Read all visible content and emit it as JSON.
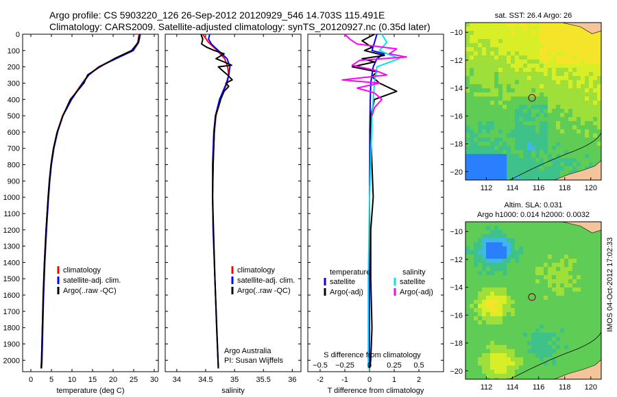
{
  "header": {
    "line1": "Argo profile: CS 5903220_126 26-Sep-2012 20120929_546 14.703S 115.491E",
    "line2": "Climatology: CARS2009. Satellite-adjusted climatology: synTS_20120927.nc (0.35d later)"
  },
  "side_label": "IMOS 04-Oct-2012 17:02:33",
  "colors": {
    "climatology": "#ff0000",
    "satellite": "#0000ff",
    "argo": "#000000",
    "sal_satellite": "#00e5e5",
    "sal_argo": "#ff00ff",
    "land": "#f4c49a",
    "marker": "#6b1a1a"
  },
  "chart_data": [
    {
      "id": "temperature",
      "type": "line",
      "xlabel": "temperature (deg C)",
      "ylabel": "depth",
      "xlim": [
        -2,
        31
      ],
      "ylim": [
        2070,
        0
      ],
      "xticks": [
        0,
        5,
        10,
        15,
        20,
        25,
        30
      ],
      "yticks": [
        0,
        100,
        200,
        300,
        400,
        500,
        600,
        700,
        800,
        900,
        1000,
        1100,
        1200,
        1300,
        1400,
        1500,
        1600,
        1700,
        1800,
        1900,
        2000
      ],
      "legend": {
        "position": "middle-left",
        "entries": [
          "climatology",
          "satellite-adj. clim.",
          "Argo(..raw -QC)"
        ]
      },
      "series": [
        {
          "name": "climatology",
          "color": "#ff0000",
          "depth": [
            0,
            50,
            100,
            150,
            200,
            250,
            300,
            400,
            500,
            600,
            700,
            800,
            900,
            1000,
            1200,
            1400,
            1600,
            1800,
            2000,
            2050
          ],
          "values": [
            26.3,
            26,
            24.8,
            20.5,
            16.5,
            14,
            12.5,
            9.8,
            7.7,
            6.4,
            5.5,
            4.9,
            4.5,
            4.2,
            3.7,
            3.3,
            3,
            2.8,
            2.6,
            2.5
          ]
        },
        {
          "name": "satellite-adj. clim.",
          "color": "#0000ff",
          "depth": [
            0,
            50,
            100,
            150,
            200,
            250,
            300,
            400,
            500,
            600,
            700,
            800,
            900,
            1000,
            1200,
            1400,
            1600,
            1800,
            2000,
            2050
          ],
          "values": [
            26.6,
            26.2,
            24.9,
            20.7,
            16.6,
            14.1,
            12.6,
            9.9,
            7.8,
            6.5,
            5.6,
            5,
            4.6,
            4.3,
            3.8,
            3.4,
            3.1,
            2.9,
            2.7,
            2.6
          ]
        },
        {
          "name": "Argo(..raw -QC)",
          "color": "#000000",
          "depth": [
            0,
            50,
            100,
            150,
            200,
            250,
            300,
            400,
            500,
            600,
            700,
            800,
            900,
            1000,
            1200,
            1400,
            1600,
            1800,
            2000,
            2050
          ],
          "values": [
            26.5,
            26.1,
            24.5,
            20.3,
            16.8,
            13.8,
            12.9,
            9.6,
            7.8,
            6.4,
            5.5,
            4.9,
            4.5,
            4.2,
            3.7,
            3.3,
            3,
            2.8,
            2.6,
            2.5
          ]
        }
      ]
    },
    {
      "id": "salinity",
      "type": "line",
      "xlabel": "salinity",
      "ylabel": "depth",
      "xlim": [
        33.8,
        36.15
      ],
      "ylim": [
        2070,
        0
      ],
      "xticks": [
        34,
        34.5,
        35,
        35.5,
        36
      ],
      "legend": {
        "position": "middle-right",
        "entries": [
          "climatology",
          "satellite-adj. clim.",
          "Argo(..raw -QC)"
        ]
      },
      "annotation": [
        "Argo Australia",
        "PI: Susan Wijffels"
      ],
      "series": [
        {
          "name": "climatology",
          "color": "#ff0000",
          "depth": [
            0,
            50,
            100,
            150,
            200,
            250,
            300,
            400,
            500,
            600,
            800,
            1000,
            1200,
            1500,
            1800,
            2050
          ],
          "values": [
            34.45,
            34.55,
            34.7,
            34.83,
            34.88,
            34.9,
            34.87,
            34.75,
            34.68,
            34.65,
            34.63,
            34.62,
            34.63,
            34.66,
            34.69,
            34.72
          ]
        },
        {
          "name": "satellite-adj. clim.",
          "color": "#0000ff",
          "depth": [
            0,
            30,
            60,
            100,
            150,
            200,
            250,
            300,
            400,
            500,
            600,
            800,
            1000,
            1200,
            1500,
            1800,
            2050
          ],
          "values": [
            34.57,
            34.55,
            34.6,
            34.72,
            34.87,
            34.92,
            34.9,
            34.86,
            34.74,
            34.67,
            34.64,
            34.62,
            34.62,
            34.63,
            34.66,
            34.69,
            34.72
          ]
        },
        {
          "name": "Argo(..raw -QC)",
          "color": "#000000",
          "depth": [
            0,
            30,
            60,
            80,
            100,
            120,
            150,
            170,
            190,
            200,
            220,
            250,
            280,
            300,
            320,
            350,
            400,
            450,
            500,
            600,
            800,
            1000,
            1500,
            2050
          ],
          "values": [
            34.42,
            34.45,
            34.43,
            34.52,
            34.65,
            34.82,
            34.68,
            34.82,
            34.95,
            34.72,
            34.78,
            34.88,
            34.96,
            34.85,
            34.9,
            34.82,
            34.76,
            34.72,
            34.67,
            34.65,
            34.63,
            34.62,
            34.66,
            34.72
          ]
        }
      ]
    },
    {
      "id": "difference",
      "type": "line",
      "xlabel": "T difference from climatology",
      "ylabel": "depth",
      "xlim": [
        -2.5,
        3
      ],
      "ylim": [
        2070,
        0
      ],
      "xticks": [
        -2,
        -1,
        0,
        1,
        2
      ],
      "secondary_axis": {
        "label": "S difference from climatology",
        "ticks": [
          -0.5,
          -0.25,
          0,
          0.25,
          0.5
        ],
        "tick_labels": [
          "−0.5",
          "−0.25",
          "0",
          "0.25",
          "0.5"
        ],
        "scale": 4
      },
      "legend": {
        "position": "middle",
        "temperature_title": "temperature",
        "salinity_title": "salinity",
        "entries": [
          "satellite",
          "Argo(-adj)",
          "satellite",
          "Argo(-adj)"
        ]
      },
      "series": [
        {
          "name": "temperature satellite",
          "color": "#0000ff",
          "depth": [
            0,
            50,
            100,
            120,
            150,
            200,
            250,
            300,
            400,
            500,
            600,
            800,
            1000,
            1500,
            2050
          ],
          "values": [
            0.3,
            0.2,
            0.1,
            0.6,
            0.3,
            0.15,
            0.1,
            0.05,
            0.03,
            0.02,
            0.01,
            0.01,
            0,
            0,
            0
          ]
        },
        {
          "name": "temperature Argo(-adj)",
          "color": "#000000",
          "depth": [
            0,
            40,
            80,
            100,
            130,
            150,
            170,
            200,
            230,
            260,
            300,
            350,
            400,
            500,
            600,
            800,
            1000,
            1200,
            1500,
            1800,
            2000,
            2050
          ],
          "values": [
            0.2,
            -0.3,
            0.1,
            -0.2,
            0.6,
            -0.3,
            0.2,
            -0.7,
            0.3,
            0.1,
            0.4,
            1.1,
            0.2,
            0.05,
            0.05,
            0.1,
            0.15,
            0.05,
            0.05,
            0.1,
            0.05,
            0
          ]
        },
        {
          "name": "salinity satellite",
          "color": "#00e5e5",
          "depth": [
            0,
            50,
            100,
            150,
            200,
            300,
            400,
            500,
            800,
            1000,
            1500,
            2050
          ],
          "values": [
            0.5,
            0.7,
            0.4,
            1.2,
            0.3,
            0.2,
            0.15,
            0.1,
            0.05,
            0,
            -0.05,
            -0.05
          ]
        },
        {
          "name": "salinity Argo(-adj)",
          "color": "#ff00ff",
          "depth": [
            0,
            30,
            60,
            90,
            120,
            140,
            160,
            190,
            220,
            250,
            280,
            300,
            330,
            360,
            400,
            450,
            500
          ],
          "values": [
            -1,
            -0.8,
            -0.5,
            1.1,
            0.8,
            1.5,
            -0.4,
            -0.7,
            0.2,
            0.7,
            -1.1,
            0.4,
            -0.5,
            0.2,
            0.5,
            0.2,
            0.1
          ]
        }
      ]
    }
  ],
  "maps": [
    {
      "id": "sst",
      "title": "sat. SST: 26.4  Argo: 26",
      "lon_ticks": [
        112,
        114,
        116,
        118,
        120
      ],
      "lat_ticks": [
        -10,
        -12,
        -14,
        -16,
        -18,
        -20
      ],
      "lon_labels": [
        "112",
        "114",
        "116",
        "118",
        "120"
      ],
      "lat_labels": [
        "−10",
        "−12",
        "−14",
        "−16",
        "−18",
        "−20"
      ],
      "float_lon": 115.491,
      "float_lat": -14.703
    },
    {
      "id": "sla",
      "title_line1": "Altim. SLA: 0.031",
      "title_line2": "Argo h1000: 0.014 h2000: 0.0032",
      "lon_ticks": [
        112,
        114,
        116,
        118,
        120
      ],
      "lat_ticks": [
        -10,
        -12,
        -14,
        -16,
        -18,
        -20
      ],
      "lon_labels": [
        "112",
        "114",
        "116",
        "118",
        "120"
      ],
      "lat_labels": [
        "−10",
        "−12",
        "−14",
        "−16",
        "−18",
        "−20"
      ],
      "float_lon": 115.491,
      "float_lat": -14.703
    }
  ]
}
